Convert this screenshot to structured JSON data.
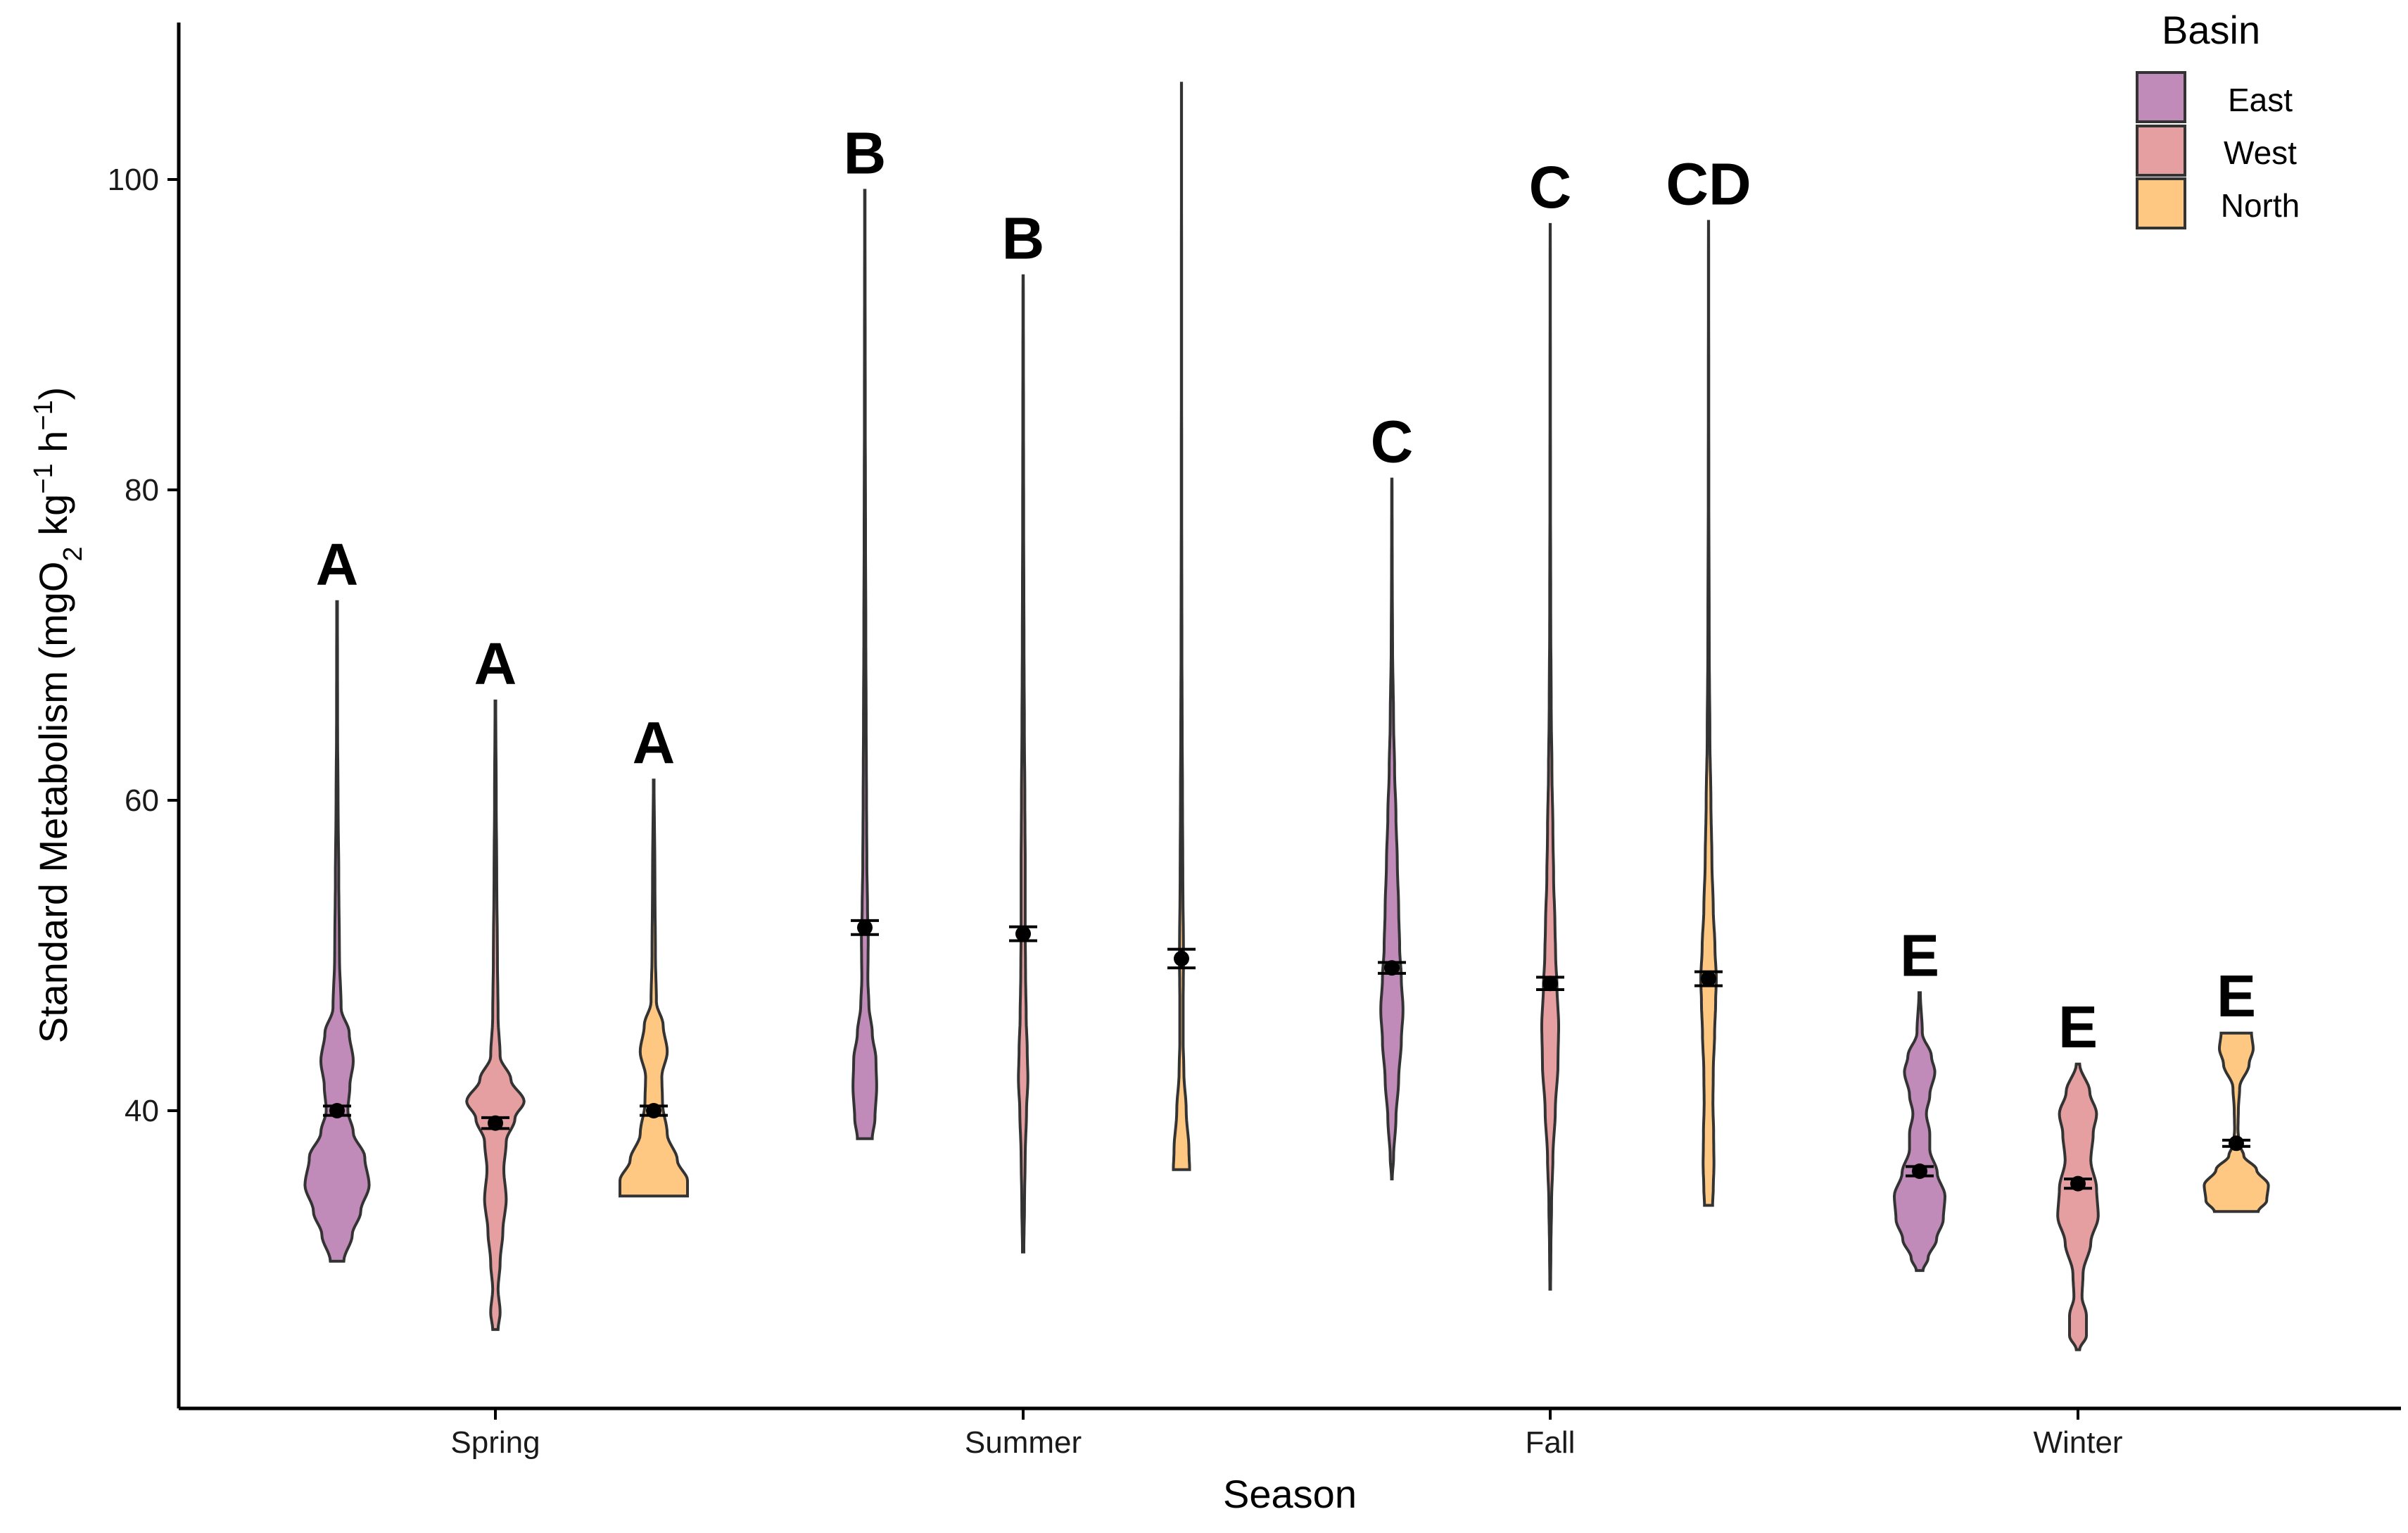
{
  "colors": {
    "East": "#c08bb8",
    "West": "#e69fa0",
    "North": "#fec883",
    "axis": "#000000",
    "outline": "#333333",
    "point": "#000000"
  },
  "chart_data": {
    "type": "violin",
    "xlabel": "Season",
    "ylabel_parts": {
      "main": "Standard Metabolism (mgO",
      "sub2": "2",
      "kg": " kg",
      "sup1": "−1",
      "h": " h",
      "sup2": "−1",
      "close": ")"
    },
    "ylim": [
      20,
      110
    ],
    "yticks": [
      40,
      60,
      80,
      100
    ],
    "categories": [
      "Spring",
      "Summer",
      "Fall",
      "Winter"
    ],
    "legend": {
      "title": "Basin",
      "entries": [
        "East",
        "West",
        "North"
      ],
      "position": "top-right"
    },
    "grid": false,
    "violins": [
      {
        "season": "Spring",
        "basin": "East",
        "letter": "A",
        "min": 30.3,
        "max": 72.8,
        "mean": 40,
        "se": 0.3,
        "profile": [
          [
            30.3,
            0.2
          ],
          [
            32,
            0.45
          ],
          [
            33.5,
            0.7
          ],
          [
            35.2,
            0.95
          ],
          [
            37,
            0.82
          ],
          [
            38.6,
            0.48
          ],
          [
            40,
            0.32
          ],
          [
            41.6,
            0.38
          ],
          [
            43.2,
            0.48
          ],
          [
            45,
            0.36
          ],
          [
            46.6,
            0.12
          ],
          [
            50,
            0.07
          ],
          [
            55,
            0.05
          ],
          [
            60,
            0.03
          ],
          [
            65,
            0.015
          ],
          [
            72.8,
            0.01
          ]
        ]
      },
      {
        "season": "Spring",
        "basin": "West",
        "letter": "A",
        "min": 25.9,
        "max": 66.4,
        "mean": 39.2,
        "se": 0.35,
        "profile": [
          [
            25.9,
            0.08
          ],
          [
            27,
            0.14
          ],
          [
            28.5,
            0.08
          ],
          [
            30.2,
            0.14
          ],
          [
            32.2,
            0.22
          ],
          [
            34.3,
            0.32
          ],
          [
            36.2,
            0.25
          ],
          [
            38,
            0.32
          ],
          [
            39.5,
            0.58
          ],
          [
            40.6,
            0.85
          ],
          [
            42,
            0.46
          ],
          [
            43.5,
            0.14
          ],
          [
            46,
            0.08
          ],
          [
            50,
            0.06
          ],
          [
            55,
            0.04
          ],
          [
            60,
            0.025
          ],
          [
            66.4,
            0.01
          ]
        ]
      },
      {
        "season": "Spring",
        "basin": "North",
        "letter": "A",
        "min": 34.5,
        "max": 61.3,
        "mean": 40,
        "se": 0.3,
        "profile": [
          [
            34.5,
            1.0
          ],
          [
            35.5,
            1.0
          ],
          [
            36.8,
            0.7
          ],
          [
            38.5,
            0.4
          ],
          [
            40.5,
            0.26
          ],
          [
            42.2,
            0.24
          ],
          [
            43.8,
            0.4
          ],
          [
            45.5,
            0.28
          ],
          [
            47,
            0.08
          ],
          [
            50,
            0.05
          ],
          [
            55,
            0.035
          ],
          [
            61.3,
            0.01
          ]
        ]
      },
      {
        "season": "Summer",
        "basin": "East",
        "letter": "B",
        "min": 38.2,
        "max": 99.3,
        "mean": 51.8,
        "se": 0.45,
        "profile": [
          [
            38.2,
            0.22
          ],
          [
            39.5,
            0.3
          ],
          [
            41.5,
            0.35
          ],
          [
            43.3,
            0.33
          ],
          [
            45,
            0.22
          ],
          [
            46.8,
            0.12
          ],
          [
            48.5,
            0.09
          ],
          [
            51,
            0.1
          ],
          [
            53,
            0.08
          ],
          [
            56,
            0.06
          ],
          [
            60,
            0.05
          ],
          [
            65,
            0.04
          ],
          [
            70,
            0.03
          ],
          [
            78,
            0.02
          ],
          [
            85,
            0.012
          ],
          [
            99.3,
            0.006
          ]
        ]
      },
      {
        "season": "Summer",
        "basin": "West",
        "letter": "B",
        "min": 30.9,
        "max": 93.8,
        "mean": 51.4,
        "se": 0.45,
        "profile": [
          [
            30.9,
            0.02
          ],
          [
            34,
            0.04
          ],
          [
            37,
            0.06
          ],
          [
            40,
            0.1
          ],
          [
            42,
            0.14
          ],
          [
            44,
            0.12
          ],
          [
            46,
            0.09
          ],
          [
            49,
            0.07
          ],
          [
            52,
            0.06
          ],
          [
            56,
            0.06
          ],
          [
            60,
            0.05
          ],
          [
            65,
            0.035
          ],
          [
            70,
            0.025
          ],
          [
            78,
            0.015
          ],
          [
            85,
            0.01
          ],
          [
            93.8,
            0.005
          ]
        ]
      },
      {
        "season": "Summer",
        "basin": "North",
        "letter": "",
        "min": 36.2,
        "max": 106.2,
        "mean": 49.8,
        "se": 0.6,
        "profile": [
          [
            36.2,
            0.24
          ],
          [
            37.5,
            0.22
          ],
          [
            40,
            0.14
          ],
          [
            42.5,
            0.07
          ],
          [
            44.5,
            0.05
          ],
          [
            47,
            0.05
          ],
          [
            50,
            0.06
          ],
          [
            55,
            0.04
          ],
          [
            60,
            0.03
          ],
          [
            65,
            0.02
          ],
          [
            70,
            0.012
          ],
          [
            80,
            0.006
          ],
          [
            90,
            0.004
          ],
          [
            106.2,
            0.002
          ]
        ]
      },
      {
        "season": "Fall",
        "basin": "East",
        "letter": "C",
        "min": 35.6,
        "max": 80.7,
        "mean": 49.2,
        "se": 0.35,
        "profile": [
          [
            35.6,
            0.01
          ],
          [
            37,
            0.05
          ],
          [
            39.5,
            0.12
          ],
          [
            42,
            0.2
          ],
          [
            44.5,
            0.28
          ],
          [
            46.5,
            0.33
          ],
          [
            48.5,
            0.28
          ],
          [
            50.5,
            0.23
          ],
          [
            53,
            0.2
          ],
          [
            56,
            0.16
          ],
          [
            59,
            0.12
          ],
          [
            62,
            0.08
          ],
          [
            65,
            0.05
          ],
          [
            70,
            0.02
          ],
          [
            75,
            0.01
          ],
          [
            80.7,
            0.005
          ]
        ]
      },
      {
        "season": "Fall",
        "basin": "West",
        "letter": "C",
        "min": 28.5,
        "max": 97.1,
        "mean": 48.2,
        "se": 0.4,
        "profile": [
          [
            28.5,
            0.01
          ],
          [
            31,
            0.02
          ],
          [
            34,
            0.04
          ],
          [
            37,
            0.08
          ],
          [
            40,
            0.15
          ],
          [
            43,
            0.23
          ],
          [
            45.5,
            0.25
          ],
          [
            48,
            0.2
          ],
          [
            50,
            0.16
          ],
          [
            52,
            0.14
          ],
          [
            55,
            0.1
          ],
          [
            58,
            0.08
          ],
          [
            62,
            0.05
          ],
          [
            66,
            0.03
          ],
          [
            72,
            0.015
          ],
          [
            80,
            0.008
          ],
          [
            97.1,
            0.003
          ]
        ]
      },
      {
        "season": "Fall",
        "basin": "North",
        "letter": "CD",
        "min": 33.9,
        "max": 97.3,
        "mean": 48.5,
        "se": 0.45,
        "profile": [
          [
            33.9,
            0.12
          ],
          [
            35,
            0.14
          ],
          [
            36.5,
            0.16
          ],
          [
            38.5,
            0.15
          ],
          [
            40.5,
            0.13
          ],
          [
            42.5,
            0.14
          ],
          [
            45,
            0.18
          ],
          [
            47,
            0.21
          ],
          [
            48.5,
            0.23
          ],
          [
            50.5,
            0.19
          ],
          [
            53,
            0.14
          ],
          [
            56,
            0.1
          ],
          [
            60,
            0.07
          ],
          [
            64,
            0.04
          ],
          [
            70,
            0.02
          ],
          [
            80,
            0.008
          ],
          [
            97.3,
            0.003
          ]
        ]
      },
      {
        "season": "Winter",
        "basin": "East",
        "letter": "E",
        "min": 29.7,
        "max": 47.6,
        "mean": 36.1,
        "se": 0.3,
        "profile": [
          [
            29.7,
            0.1
          ],
          [
            30.5,
            0.25
          ],
          [
            31.7,
            0.5
          ],
          [
            33,
            0.7
          ],
          [
            34.5,
            0.75
          ],
          [
            36,
            0.52
          ],
          [
            37.5,
            0.3
          ],
          [
            38.5,
            0.3
          ],
          [
            39.8,
            0.2
          ],
          [
            41,
            0.3
          ],
          [
            42.5,
            0.45
          ],
          [
            43.5,
            0.35
          ],
          [
            45,
            0.08
          ],
          [
            47.6,
            0.02
          ]
        ]
      },
      {
        "season": "Winter",
        "basin": "West",
        "letter": "E",
        "min": 24.6,
        "max": 43,
        "mean": 35.3,
        "se": 0.3,
        "profile": [
          [
            24.6,
            0.05
          ],
          [
            25.5,
            0.25
          ],
          [
            26.8,
            0.25
          ],
          [
            28,
            0.12
          ],
          [
            29.5,
            0.15
          ],
          [
            31.5,
            0.38
          ],
          [
            33.2,
            0.6
          ],
          [
            35,
            0.55
          ],
          [
            36.8,
            0.38
          ],
          [
            38.5,
            0.45
          ],
          [
            39.8,
            0.55
          ],
          [
            41.2,
            0.35
          ],
          [
            43,
            0.05
          ]
        ]
      },
      {
        "season": "Winter",
        "basin": "North",
        "letter": "E",
        "min": 33.5,
        "max": 45,
        "mean": 37.9,
        "se": 0.2,
        "profile": [
          [
            33.5,
            0.65
          ],
          [
            34.2,
            0.9
          ],
          [
            35.2,
            0.95
          ],
          [
            36.2,
            0.6
          ],
          [
            37.1,
            0.22
          ],
          [
            37.9,
            0.08
          ],
          [
            38.8,
            0.05
          ],
          [
            40,
            0.06
          ],
          [
            41.5,
            0.1
          ],
          [
            43,
            0.38
          ],
          [
            44,
            0.5
          ],
          [
            45,
            0.45
          ]
        ]
      }
    ]
  }
}
